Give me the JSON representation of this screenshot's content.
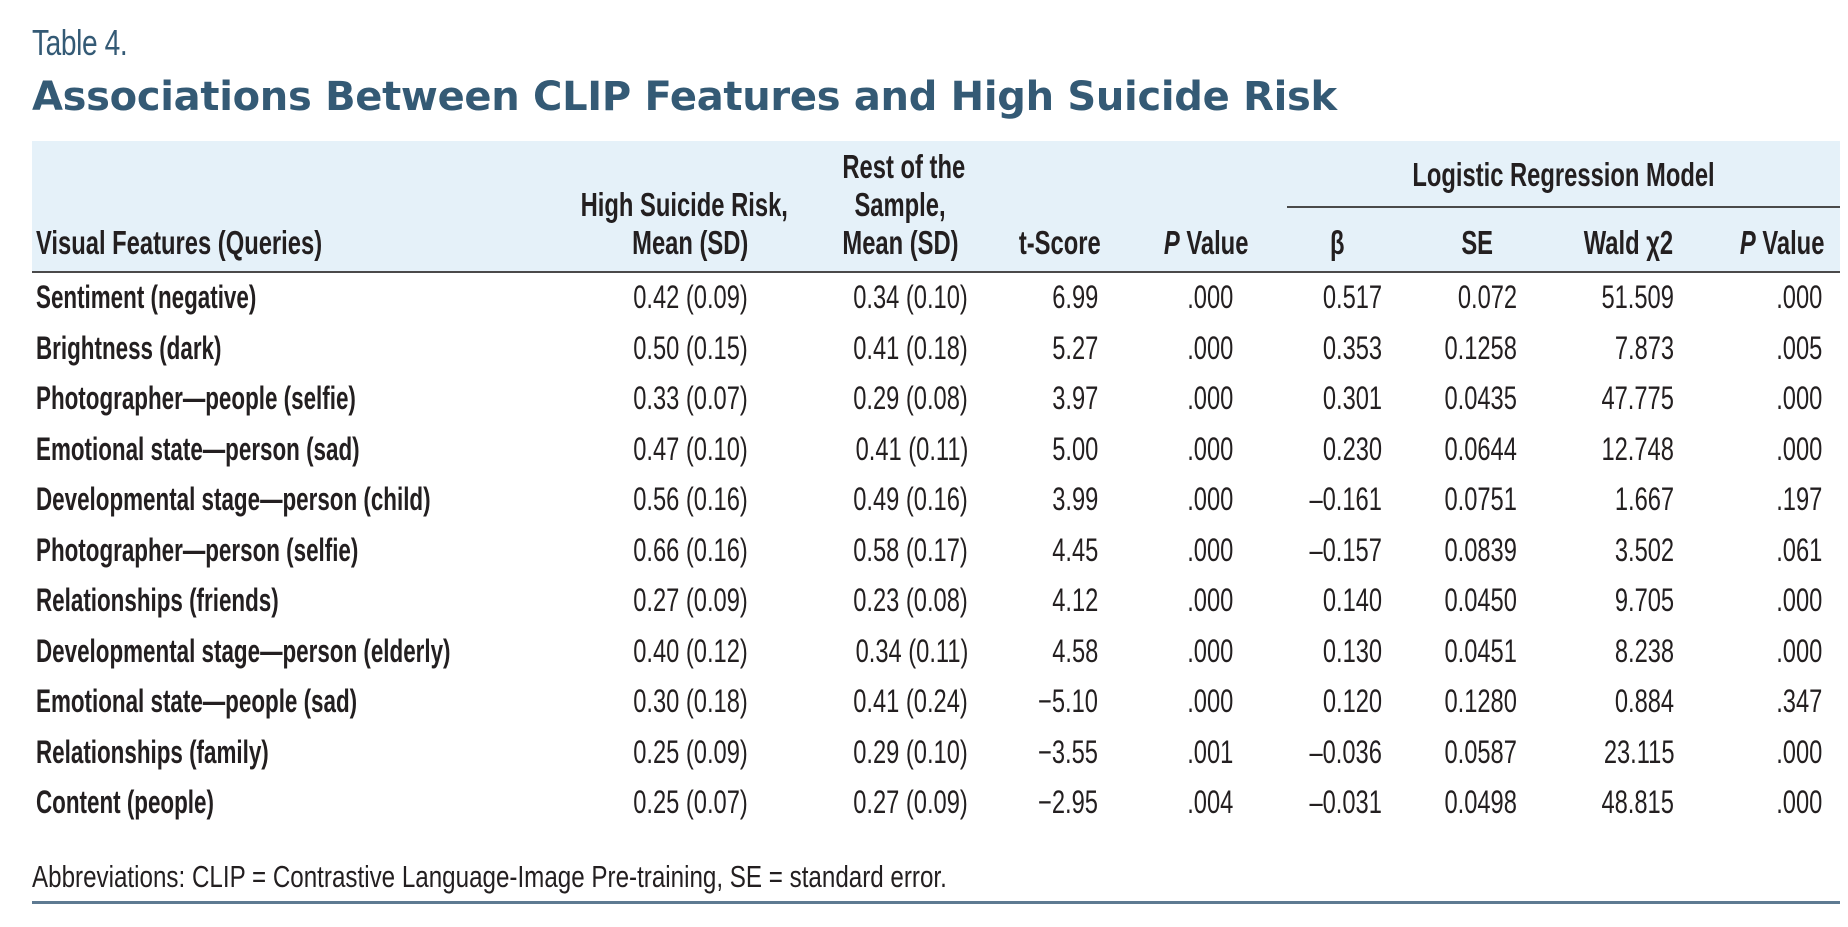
{
  "table_label": "Table 4.",
  "title": "Associations Between CLIP Features and High Suicide Risk",
  "header": {
    "group_label": "Logistic Regression Model",
    "columns": {
      "feature": "Visual Features (Queries)",
      "high_risk_line1": "High Suicide Risk,",
      "high_risk_line2": "Mean (SD)",
      "rest_line1": "Rest of the",
      "rest_line2": "Sample,",
      "rest_line3": "Mean (SD)",
      "t_score": "t-Score",
      "p_italic": "P",
      "p_value_rest": " Value",
      "beta": "β",
      "se": "SE",
      "wald": "Wald χ2",
      "p2_italic": "P",
      "p2_value_rest": " Value"
    }
  },
  "rows": [
    {
      "feature": "Sentiment (negative)",
      "high_risk": "0.42 (0.09)",
      "rest": "0.34 (0.10)",
      "t": "6.99",
      "p": ".000",
      "beta": "0.517",
      "se": "0.072",
      "wald": "51.509",
      "p2": ".000"
    },
    {
      "feature": "Brightness (dark)",
      "high_risk": "0.50 (0.15)",
      "rest": "0.41 (0.18)",
      "t": "5.27",
      "p": ".000",
      "beta": "0.353",
      "se": "0.1258",
      "wald": "7.873",
      "p2": ".005"
    },
    {
      "feature": "Photographer—people (selfie)",
      "high_risk": "0.33 (0.07)",
      "rest": "0.29 (0.08)",
      "t": "3.97",
      "p": ".000",
      "beta": "0.301",
      "se": "0.0435",
      "wald": "47.775",
      "p2": ".000"
    },
    {
      "feature": "Emotional state—person (sad)",
      "high_risk": "0.47 (0.10)",
      "rest": "0.41 (0.11)",
      "t": "5.00",
      "p": ".000",
      "beta": "0.230",
      "se": "0.0644",
      "wald": "12.748",
      "p2": ".000"
    },
    {
      "feature": "Developmental stage—person (child)",
      "high_risk": "0.56 (0.16)",
      "rest": "0.49 (0.16)",
      "t": "3.99",
      "p": ".000",
      "beta": "–0.161",
      "se": "0.0751",
      "wald": "1.667",
      "p2": ".197"
    },
    {
      "feature": "Photographer—person (selfie)",
      "high_risk": "0.66 (0.16)",
      "rest": "0.58 (0.17)",
      "t": "4.45",
      "p": ".000",
      "beta": "–0.157",
      "se": "0.0839",
      "wald": "3.502",
      "p2": ".061"
    },
    {
      "feature": "Relationships (friends)",
      "high_risk": "0.27 (0.09)",
      "rest": "0.23 (0.08)",
      "t": "4.12",
      "p": ".000",
      "beta": "0.140",
      "se": "0.0450",
      "wald": "9.705",
      "p2": ".000"
    },
    {
      "feature": "Developmental stage—person (elderly)",
      "high_risk": "0.40 (0.12)",
      "rest": "0.34 (0.11)",
      "t": "4.58",
      "p": ".000",
      "beta": "0.130",
      "se": "0.0451",
      "wald": "8.238",
      "p2": ".000"
    },
    {
      "feature": "Emotional state—people (sad)",
      "high_risk": "0.30 (0.18)",
      "rest": "0.41 (0.24)",
      "t": "−5.10",
      "p": ".000",
      "beta": "0.120",
      "se": "0.1280",
      "wald": "0.884",
      "p2": ".347"
    },
    {
      "feature": "Relationships (family)",
      "high_risk": "0.25 (0.09)",
      "rest": "0.29 (0.10)",
      "t": "−3.55",
      "p": ".001",
      "beta": "–0.036",
      "se": "0.0587",
      "wald": "23.115",
      "p2": ".000"
    },
    {
      "feature": "Content (people)",
      "high_risk": "0.25 (0.07)",
      "rest": "0.27 (0.09)",
      "t": "−2.95",
      "p": ".004",
      "beta": "–0.031",
      "se": "0.0498",
      "wald": "48.815",
      "p2": ".000"
    }
  ],
  "footnote": "Abbreviations: CLIP = Contrastive Language-Image Pre-training, SE = standard error.",
  "colors": {
    "title": "#345a75",
    "header_band": "#e5f1f9",
    "text": "#231f20",
    "bottom_rule": "#5e7a92"
  }
}
